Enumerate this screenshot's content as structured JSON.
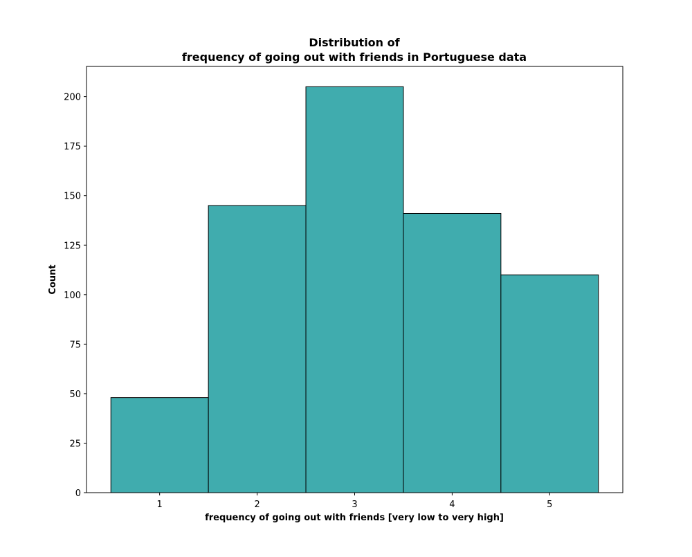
{
  "chart_data": {
    "type": "bar",
    "title_line1": "Distribution of",
    "title_line2": "frequency of going out with friends in Portuguese data",
    "xlabel": "frequency of going out with friends [very low to very high]",
    "ylabel": "Count",
    "categories": [
      "1",
      "2",
      "3",
      "4",
      "5"
    ],
    "values": [
      48,
      145,
      205,
      141,
      110
    ],
    "xlim": [
      0.25,
      5.75
    ],
    "ylim": [
      0,
      215.25
    ],
    "yticks": [
      0,
      25,
      50,
      75,
      100,
      125,
      150,
      175,
      200
    ],
    "grid": false,
    "bar_color": "#40acae",
    "edge_color": "#000000"
  }
}
